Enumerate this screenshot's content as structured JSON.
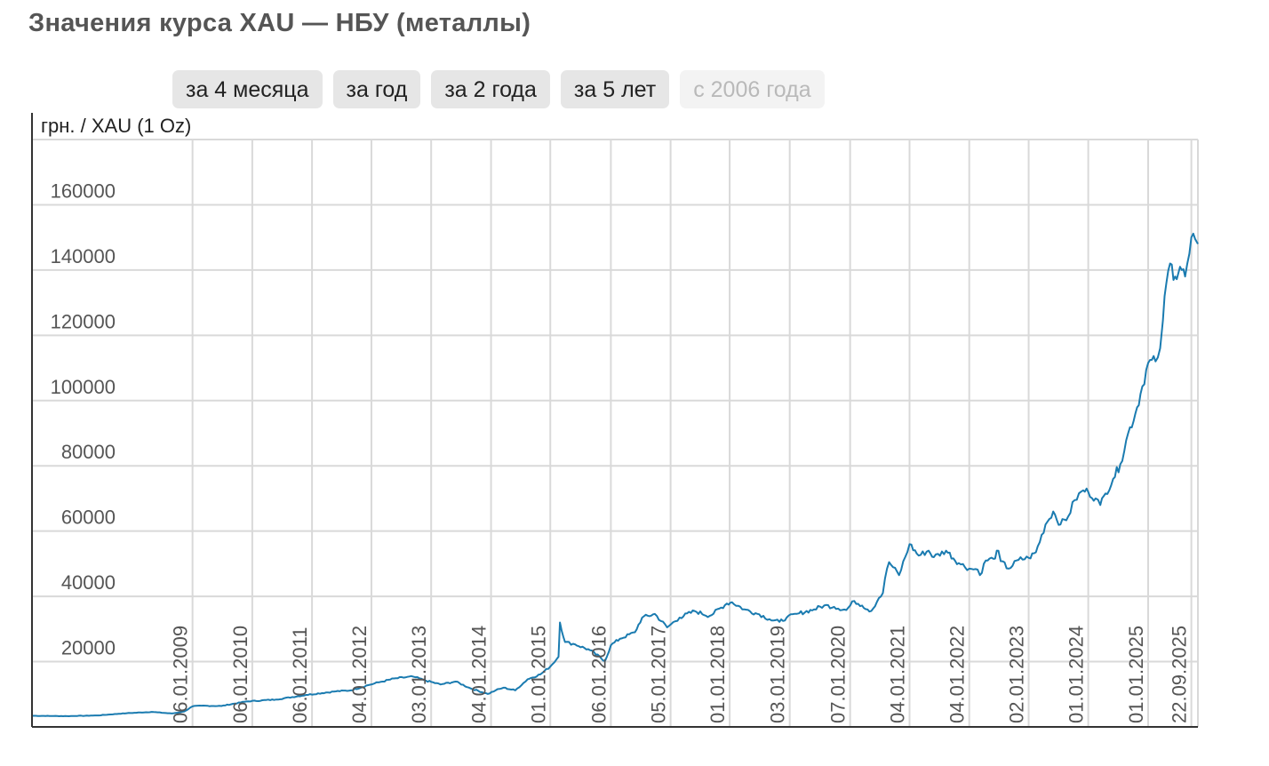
{
  "title": "Значения курса XAU — НБУ (металлы)",
  "range_buttons": [
    {
      "label": "за 4 месяца",
      "active": false
    },
    {
      "label": "за год",
      "active": false
    },
    {
      "label": "за 2 года",
      "active": false
    },
    {
      "label": "за 5 лет",
      "active": false
    },
    {
      "label": "с 2006 года",
      "active": true
    }
  ],
  "colors": {
    "line": "#1a7bb0",
    "grid": "#d9d9d9",
    "axis": "#333333",
    "tick_text": "#555555"
  },
  "chart_data": {
    "type": "line",
    "ylabel": "грн. / XAU (1 Oz)",
    "ylim": [
      0,
      180000
    ],
    "yticks": [
      20000,
      40000,
      60000,
      80000,
      100000,
      120000,
      140000,
      160000
    ],
    "xlim": [
      "2006-05-01",
      "2025-11-01"
    ],
    "xticks": [
      "06.01.2009",
      "06.01.2010",
      "06.01.2011",
      "04.01.2012",
      "03.01.2013",
      "04.01.2014",
      "01.01.2015",
      "06.01.2016",
      "05.01.2017",
      "01.01.2018",
      "03.01.2019",
      "07.01.2020",
      "04.01.2021",
      "04.01.2022",
      "02.01.2023",
      "01.01.2024",
      "01.01.2025",
      "22.09.2025"
    ],
    "grid": true,
    "series": [
      {
        "x": [
          "2006-05-01",
          "2006-12-01",
          "2007-06-01",
          "2007-12-01",
          "2008-05-01",
          "2008-09-01",
          "2008-11-15",
          "2009-01-06",
          "2009-03-01",
          "2009-07-01",
          "2009-12-01",
          "2010-06-01",
          "2010-12-01",
          "2011-06-01",
          "2011-09-01",
          "2011-12-15",
          "2012-03-01",
          "2012-06-01",
          "2012-09-15",
          "2012-12-01",
          "2013-03-01",
          "2013-06-01",
          "2013-09-01",
          "2013-12-15",
          "2014-02-01",
          "2014-03-20",
          "2014-06-01",
          "2014-08-15",
          "2014-11-01",
          "2015-01-01",
          "2015-02-20",
          "2015-03-01",
          "2015-04-01",
          "2015-06-01",
          "2015-09-01",
          "2015-12-01",
          "2016-01-06",
          "2016-03-01",
          "2016-06-01",
          "2016-07-15",
          "2016-10-01",
          "2016-12-15",
          "2017-03-01",
          "2017-06-01",
          "2017-09-01",
          "2017-12-15",
          "2018-01-15",
          "2018-04-01",
          "2018-07-01",
          "2018-09-01",
          "2018-11-01",
          "2018-12-15",
          "2019-03-01",
          "2019-06-01",
          "2019-08-01",
          "2019-10-01",
          "2019-12-15",
          "2020-02-01",
          "2020-03-20",
          "2020-05-15",
          "2020-07-01",
          "2020-07-25",
          "2020-08-07",
          "2020-09-01",
          "2020-11-01",
          "2021-01-04",
          "2021-03-01",
          "2021-05-01",
          "2021-06-01",
          "2021-08-15",
          "2021-11-01",
          "2022-01-04",
          "2022-02-24",
          "2022-03-10",
          "2022-04-15",
          "2022-06-01",
          "2022-07-01",
          "2022-07-15",
          "2022-09-01",
          "2022-11-01",
          "2023-01-02",
          "2023-02-15",
          "2023-04-15",
          "2023-06-01",
          "2023-07-15",
          "2023-09-01",
          "2023-10-10",
          "2023-12-01",
          "2024-01-01",
          "2024-02-15",
          "2024-03-15",
          "2024-04-15",
          "2024-06-01",
          "2024-07-15",
          "2024-09-01",
          "2024-10-15",
          "2024-11-15",
          "2025-01-01",
          "2025-02-15",
          "2025-03-15",
          "2025-04-01",
          "2025-04-22",
          "2025-05-15",
          "2025-06-15",
          "2025-07-15",
          "2025-08-15",
          "2025-09-10",
          "2025-09-22",
          "2025-10-15",
          "2025-11-01"
        ],
        "y": [
          3400,
          3300,
          3500,
          4200,
          4600,
          4100,
          4700,
          6300,
          6500,
          6400,
          7800,
          8400,
          9800,
          10900,
          11200,
          12800,
          13800,
          14900,
          15400,
          14200,
          13000,
          13900,
          11800,
          10100,
          11200,
          12000,
          11200,
          14600,
          16100,
          18500,
          21500,
          32000,
          26000,
          25300,
          23500,
          20200,
          25000,
          27000,
          29000,
          33500,
          34600,
          30500,
          33500,
          35500,
          34000,
          37800,
          38200,
          36000,
          34500,
          33000,
          32200,
          33500,
          34800,
          36000,
          37200,
          36800,
          35800,
          38600,
          37200,
          35500,
          39500,
          41000,
          45500,
          50500,
          46500,
          56000,
          52500,
          54000,
          52000,
          54000,
          50200,
          48500,
          48200,
          46500,
          51000,
          51500,
          54000,
          50800,
          48500,
          51200,
          51800,
          53500,
          62000,
          66000,
          62000,
          64500,
          69500,
          72500,
          72000,
          70000,
          68000,
          71500,
          76000,
          80500,
          90000,
          96000,
          102000,
          111500,
          112000,
          116000,
          124500,
          136000,
          142000,
          138000,
          141000,
          138000,
          145000,
          150000,
          149500,
          148000
        ]
      }
    ]
  }
}
